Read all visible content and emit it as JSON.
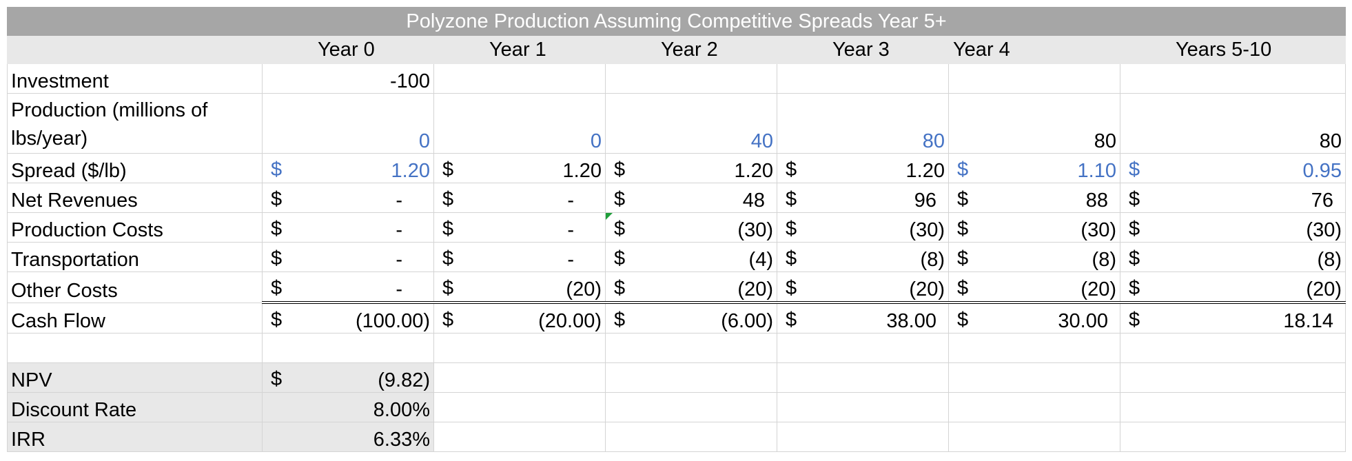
{
  "title": "Polyzone Production Assuming Competitive Spreads Year 5+",
  "years": [
    "Year 0",
    "Year 1",
    "Year 2",
    "Year 3",
    "Year 4",
    "Years 5-10"
  ],
  "currency_symbol": "$",
  "rows": {
    "investment": {
      "label": "Investment",
      "values": [
        "-100",
        "",
        "",
        "",
        "",
        ""
      ]
    },
    "production": {
      "label": "Production (millions of lbs/year)",
      "values": [
        "0",
        "0",
        "40",
        "80",
        "80",
        "80"
      ]
    },
    "spread": {
      "label": "Spread ($/lb)",
      "values": [
        "1.20",
        "1.20",
        "1.20",
        "1.20",
        "1.10",
        "0.95"
      ]
    },
    "net_revenues": {
      "label": "Net Revenues",
      "values": [
        "-",
        "-",
        "48",
        "96",
        "88",
        "76"
      ]
    },
    "production_costs": {
      "label": "Production Costs",
      "values": [
        "-",
        "-",
        "(30)",
        "(30)",
        "(30)",
        "(30)"
      ]
    },
    "transportation": {
      "label": "Transportation",
      "values": [
        "-",
        "-",
        "(4)",
        "(8)",
        "(8)",
        "(8)"
      ]
    },
    "other_costs": {
      "label": "Other Costs",
      "values": [
        "-",
        "(20)",
        "(20)",
        "(20)",
        "(20)",
        "(20)"
      ]
    },
    "cash_flow": {
      "label": "Cash Flow",
      "values": [
        "(100.00)",
        "(20.00)",
        "(6.00)",
        "38.00",
        "30.00",
        "18.14"
      ]
    }
  },
  "summary": {
    "npv": {
      "label": "NPV",
      "value": "(9.82)"
    },
    "discount_rate": {
      "label": "Discount Rate",
      "value": "8.00%"
    },
    "irr": {
      "label": "IRR",
      "value": "6.33%"
    }
  },
  "colors": {
    "title_bg": "#a6a6a6",
    "header_bg": "#e8e8e8",
    "input_blue": "#4472c4",
    "comment_flag": "#1f9e3a"
  }
}
